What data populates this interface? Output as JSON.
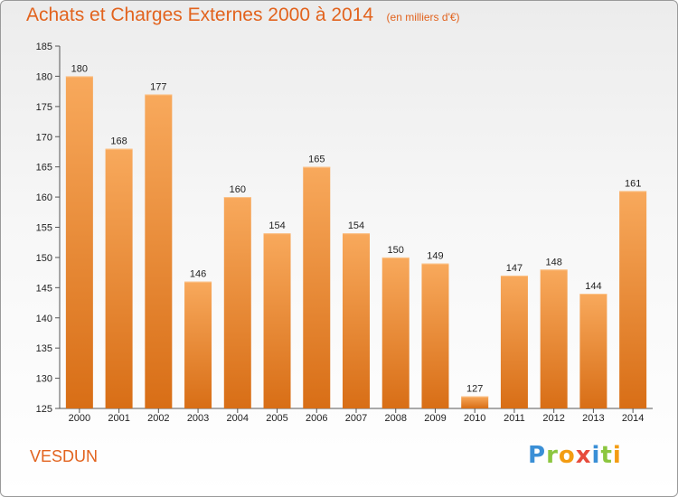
{
  "title": "Achats et Charges Externes 2000 à 2014",
  "subtitle": "(en milliers d'€)",
  "town": "VESDUN",
  "logo": {
    "letters": [
      "P",
      "r",
      "o",
      "x",
      "i",
      "t",
      "i"
    ],
    "colors": [
      "#3a8fd6",
      "#8cc63f",
      "#f39c12",
      "#e74c3c",
      "#3a8fd6",
      "#8cc63f",
      "#f39c12"
    ]
  },
  "colors": {
    "accent": "#e2631e",
    "bar_light": "#f7a65a",
    "bar_dark": "#d96f17"
  },
  "chart_data": {
    "type": "bar",
    "categories": [
      "2000",
      "2001",
      "2002",
      "2003",
      "2004",
      "2005",
      "2006",
      "2007",
      "2008",
      "2009",
      "2010",
      "2011",
      "2012",
      "2013",
      "2014"
    ],
    "values": [
      180,
      168,
      177,
      146,
      160,
      154,
      165,
      154,
      150,
      149,
      127,
      147,
      148,
      144,
      161
    ],
    "ylim": [
      125,
      185
    ],
    "yticks": [
      125,
      130,
      135,
      140,
      145,
      150,
      155,
      160,
      165,
      170,
      175,
      180,
      185
    ],
    "grid": false,
    "data_labels": true
  }
}
